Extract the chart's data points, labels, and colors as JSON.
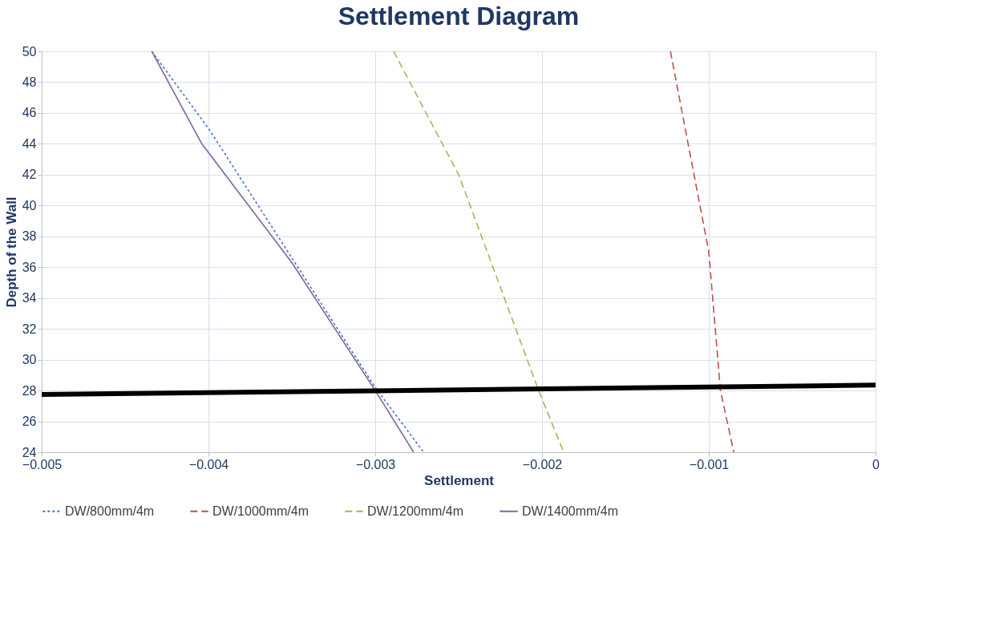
{
  "chart_data": {
    "type": "line",
    "title": "Settlement Diagram",
    "xlabel": "Settlement",
    "ylabel": "Depth of the Wall",
    "xlim": [
      -0.005,
      0
    ],
    "xticks": [
      -0.005,
      -0.004,
      -0.003,
      -0.002,
      -0.001,
      0
    ],
    "ylim": [
      24,
      50
    ],
    "yticks": [
      24,
      26,
      28,
      30,
      32,
      34,
      36,
      38,
      40,
      42,
      44,
      46,
      48,
      50
    ],
    "grid": true,
    "legend": "bottom",
    "marker": "none",
    "series": [
      {
        "name": "DW/800mm/4m",
        "color": "#4472c4",
        "line_style": "dotted",
        "x": [
          -0.00434,
          -0.004,
          -0.0035,
          -0.003,
          -0.00271
        ],
        "values": [
          50,
          45,
          36.6,
          28.2,
          24
        ]
      },
      {
        "name": "DW/1000mm/4m",
        "color": "#c0504d",
        "line_style": "dashed",
        "x": [
          -0.00123,
          -0.001,
          -0.00093,
          -0.00085
        ],
        "values": [
          50,
          37,
          28,
          24
        ]
      },
      {
        "name": "DW/1200mm/4m",
        "color": "#9bbb59",
        "line_style": "dashed",
        "x": [
          -0.00289,
          -0.0025,
          -0.00202,
          -0.00187
        ],
        "values": [
          50,
          42,
          28,
          24
        ]
      },
      {
        "name": "DW/1400mm/4m",
        "color": "#8064a2",
        "line_style": "solid",
        "x": [
          -0.00434,
          -0.00404,
          -0.0035,
          -0.003,
          -0.00277
        ],
        "values": [
          50,
          44,
          36.3,
          28,
          24
        ]
      },
      {
        "color": "#000000",
        "line_style": "solid",
        "x": [
          -0.005,
          0
        ],
        "values": [
          27.74,
          28.35
        ]
      }
    ]
  }
}
